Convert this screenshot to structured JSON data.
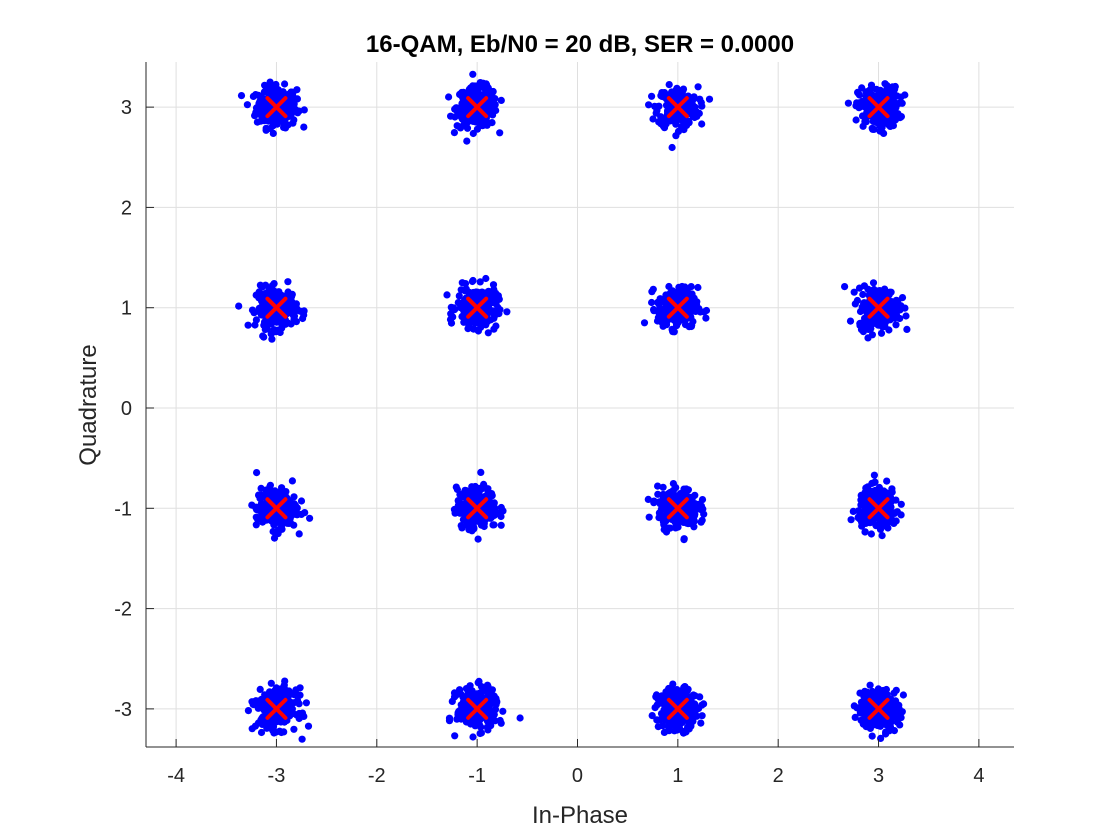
{
  "chart_data": {
    "type": "scatter",
    "title": "16-QAM, Eb/N0 = 20 dB, SER = 0.0000",
    "xlabel": "In-Phase",
    "ylabel": "Quadrature",
    "xlim": [
      -4.3,
      4.35
    ],
    "ylim": [
      -3.38,
      3.45
    ],
    "xticks": [
      -4,
      -3,
      -2,
      -1,
      0,
      1,
      2,
      3,
      4
    ],
    "xtick_labels": [
      "-4",
      "-3",
      "-2",
      "-1",
      "0",
      "1",
      "2",
      "3",
      "4"
    ],
    "yticks": [
      -3,
      -2,
      -1,
      0,
      1,
      2,
      3
    ],
    "ytick_labels": [
      "-3",
      "-2",
      "-1",
      "0",
      "1",
      "2",
      "3"
    ],
    "grid": true,
    "series": [
      {
        "marker": "dot",
        "color": "#0000ff",
        "description_points_per_symbol": 250,
        "noise_std": 0.1,
        "centers": [
          [
            -3,
            3
          ],
          [
            -1,
            3
          ],
          [
            1,
            3
          ],
          [
            3,
            3
          ],
          [
            -3,
            1
          ],
          [
            -1,
            1
          ],
          [
            1,
            1
          ],
          [
            3,
            1
          ],
          [
            -3,
            -1
          ],
          [
            -1,
            -1
          ],
          [
            1,
            -1
          ],
          [
            3,
            -1
          ],
          [
            -3,
            -3
          ],
          [
            -1,
            -3
          ],
          [
            1,
            -3
          ],
          [
            3,
            -3
          ]
        ]
      },
      {
        "marker": "x",
        "color": "#ff0000",
        "x": [
          -3,
          -1,
          1,
          3,
          -3,
          -1,
          1,
          3,
          -3,
          -1,
          1,
          3,
          -3,
          -1,
          1,
          3
        ],
        "y": [
          3,
          3,
          3,
          3,
          1,
          1,
          1,
          1,
          -1,
          -1,
          -1,
          -1,
          -3,
          -3,
          -3,
          -3
        ]
      }
    ],
    "colors": {
      "received": "#0000ff",
      "ideal": "#ff0000",
      "grid": "#dfdfdf",
      "axis": "#262626"
    }
  }
}
